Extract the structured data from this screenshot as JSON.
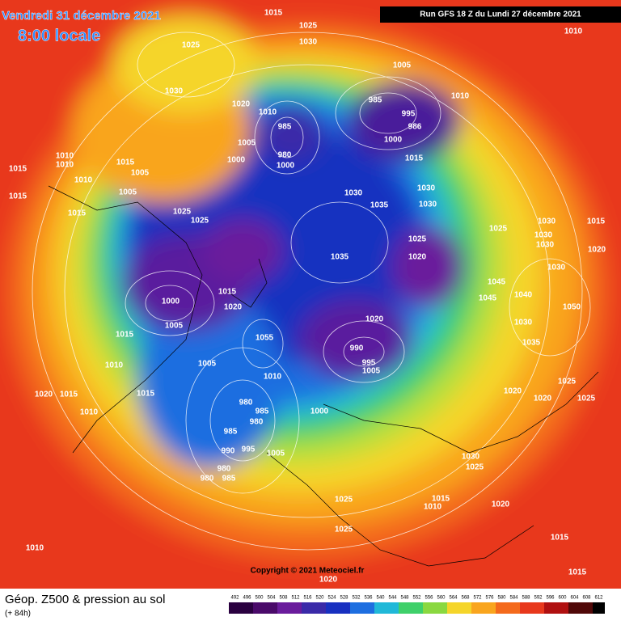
{
  "header": {
    "date": "Vendredi 31 décembre 2021",
    "time": "8:00 locale",
    "run": "Run GFS 18 Z du Lundi 27 décembre 2021"
  },
  "footer": {
    "title": "Géop. Z500 & pression au sol",
    "lead": "(+ 84h)",
    "copyright": "Copyright © 2021 Meteociel.fr"
  },
  "scale": [
    492,
    496,
    500,
    504,
    508,
    512,
    516,
    520,
    524,
    528,
    532,
    536,
    540,
    544,
    548,
    552,
    556,
    560,
    564,
    568,
    572,
    576,
    580,
    584,
    588,
    592,
    596,
    600,
    604,
    608,
    612
  ],
  "isobars": [
    "1015",
    "1025",
    "1030",
    "1025",
    "1030",
    "1010",
    "1005",
    "985",
    "995",
    "1010",
    "986",
    "1000",
    "1015",
    "1020",
    "1010",
    "985",
    "1005",
    "1000",
    "980",
    "1000",
    "1010",
    "1010",
    "1015",
    "1005",
    "1010",
    "1015",
    "1015",
    "1005",
    "1030",
    "1035",
    "1030",
    "1030",
    "1025",
    "1025",
    "1015",
    "1025",
    "1020",
    "1035",
    "1025",
    "1030",
    "1030",
    "1030",
    "1015",
    "1020",
    "1030",
    "1015",
    "1020",
    "1000",
    "1005",
    "1015",
    "1045",
    "1040",
    "1045",
    "1030",
    "1035",
    "1050",
    "1020",
    "1055",
    "990",
    "995",
    "1005",
    "1010",
    "1005",
    "1010",
    "1020",
    "1015",
    "1015",
    "1010",
    "980",
    "985",
    "980",
    "985",
    "990",
    "995",
    "1005",
    "980",
    "980",
    "985",
    "1000",
    "1025",
    "1020",
    "1020",
    "1025",
    "1030",
    "1025",
    "1015",
    "1010",
    "1020",
    "1025",
    "1025",
    "1010",
    "1015",
    "1015",
    "1020"
  ]
}
